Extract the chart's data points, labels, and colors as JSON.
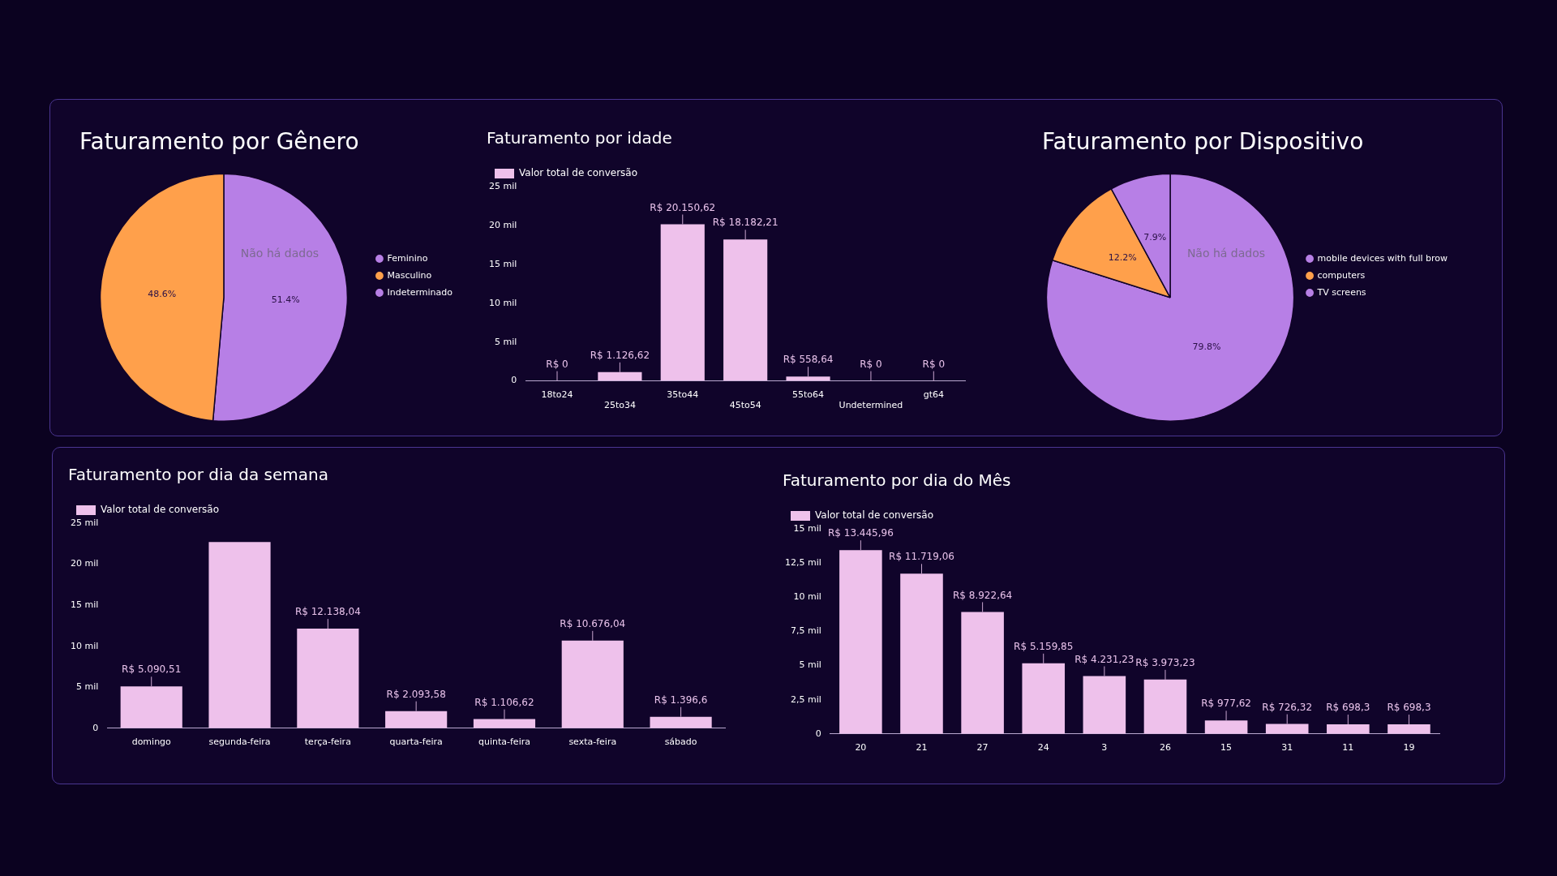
{
  "chart_data": [
    {
      "type": "pie",
      "title": "Faturamento por Gênero",
      "categories": [
        "Feminino",
        "Masculino",
        "Indeterminado"
      ],
      "values": [
        51.4,
        48.6,
        0
      ],
      "colors": [
        "#b77fe6",
        "#ffa04b",
        "#b77fe6"
      ],
      "value_labels": [
        "51.4%",
        "48.6%",
        null
      ],
      "legend": "right",
      "annotations": [
        "Não há dados"
      ]
    },
    {
      "type": "bar",
      "title": "Faturamento por idade",
      "categories": [
        "18to24",
        "25to34",
        "35to44",
        "45to54",
        "55to64",
        "Undetermined",
        "gt64"
      ],
      "series": [
        {
          "name": "Valor total de conversão",
          "color": "#eec1eb",
          "values": [
            0,
            1.12662,
            20.15062,
            18.18221,
            0.55864,
            0,
            0
          ],
          "value_labels": [
            "R$ 0",
            "R$ 1.126,62",
            "R$ 20.150,62",
            "R$ 18.182,21",
            "R$ 558,64",
            "R$ 0",
            "R$ 0"
          ]
        }
      ],
      "ylim": [
        0,
        25
      ],
      "yticks": [
        {
          "value": 0,
          "label": "0"
        },
        {
          "value": 5,
          "label": "5 mil"
        },
        {
          "value": 10,
          "label": "10 mil"
        },
        {
          "value": 15,
          "label": "15 mil"
        },
        {
          "value": 20,
          "label": "20 mil"
        },
        {
          "value": 25,
          "label": "25 mil"
        }
      ],
      "legend": "top left"
    },
    {
      "type": "pie",
      "title": "Faturamento por Dispositivo",
      "categories": [
        "mobile devices with full brow",
        "computers",
        "TV screens"
      ],
      "values": [
        79.8,
        12.2,
        7.9
      ],
      "colors": [
        "#b77fe6",
        "#ffa04b",
        "#b77fe6"
      ],
      "value_labels": [
        "79.8%",
        "12.2%",
        "7.9%"
      ],
      "legend": "right",
      "annotations": [
        "Não há dados"
      ]
    },
    {
      "type": "bar",
      "title": "Faturamento por dia da semana",
      "categories": [
        "domingo",
        "segunda-feira",
        "terça-feira",
        "quarta-feira",
        "quinta-feira",
        "sexta-feira",
        "sábado"
      ],
      "series": [
        {
          "name": "Valor total de conversão",
          "color": "#eec1eb",
          "values": [
            5.09051,
            22.7,
            12.13804,
            2.09358,
            1.10662,
            10.67604,
            1.3966
          ],
          "value_labels": [
            "R$ 5.090,51",
            null,
            "R$ 12.138,04",
            "R$ 2.093,58",
            "R$ 1.106,62",
            "R$ 10.676,04",
            "R$ 1.396,6"
          ]
        }
      ],
      "ylim": [
        0,
        25
      ],
      "yticks": [
        {
          "value": 0,
          "label": "0"
        },
        {
          "value": 5,
          "label": "5 mil"
        },
        {
          "value": 10,
          "label": "10 mil"
        },
        {
          "value": 15,
          "label": "15 mil"
        },
        {
          "value": 20,
          "label": "20 mil"
        },
        {
          "value": 25,
          "label": "25 mil"
        }
      ],
      "legend": "top left"
    },
    {
      "type": "bar",
      "title": "Faturamento por dia do Mês",
      "categories": [
        "20",
        "21",
        "27",
        "24",
        "3",
        "26",
        "15",
        "31",
        "11",
        "19"
      ],
      "series": [
        {
          "name": "Valor total de conversão",
          "color": "#eec1eb",
          "values": [
            13.44596,
            11.71906,
            8.92264,
            5.15985,
            4.23123,
            3.97323,
            0.97762,
            0.72632,
            0.6983,
            0.6983
          ],
          "value_labels": [
            "R$ 13.445,96",
            "R$ 11.719,06",
            "R$ 8.922,64",
            "R$ 5.159,85",
            "R$ 4.231,23",
            "R$ 3.973,23",
            "R$ 977,62",
            "R$ 726,32",
            "R$ 698,3",
            "R$ 698,3"
          ]
        }
      ],
      "ylim": [
        0,
        15
      ],
      "yticks": [
        {
          "value": 0,
          "label": "0"
        },
        {
          "value": 2.5,
          "label": "2,5 mil"
        },
        {
          "value": 5,
          "label": "5 mil"
        },
        {
          "value": 7.5,
          "label": "7,5 mil"
        },
        {
          "value": 10,
          "label": "10 mil"
        },
        {
          "value": 12.5,
          "label": "12,5 mil"
        },
        {
          "value": 15,
          "label": "15 mil"
        }
      ],
      "legend": "top left"
    }
  ]
}
